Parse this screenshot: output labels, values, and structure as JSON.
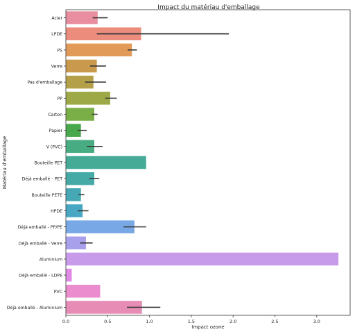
{
  "chart_data": {
    "type": "bar",
    "orientation": "horizontal",
    "title": "Impact du matériau d'emballage",
    "xlabel": "Impact ozone",
    "ylabel": "Matériau d'emballage",
    "xlim": [
      0,
      3.4
    ],
    "xticks": [
      "0.0",
      "0.5",
      "1.0",
      "1.5",
      "2.0",
      "2.5",
      "3.0"
    ],
    "grid": false,
    "categories": [
      "Acier",
      "LPDE",
      "PS",
      "Verre",
      "Pas d'emballage",
      "PP",
      "Carton",
      "Papier",
      "V (PVC)",
      "Bouteille PET",
      "Déjà emballé - PET",
      "Bouteille PETE",
      "HPDE",
      "Déjà emballé - PP/PE",
      "Déjà emballé - Verre",
      "Aluminium",
      "Déjà emballé - LDPE",
      "PVC",
      "Déjà emballé - Aluminium"
    ],
    "values": [
      0.38,
      0.9,
      0.79,
      0.37,
      0.33,
      0.53,
      0.34,
      0.18,
      0.34,
      0.96,
      0.34,
      0.18,
      0.2,
      0.82,
      0.24,
      3.26,
      0.07,
      0.41,
      0.91
    ],
    "error_low": [
      0.32,
      0.37,
      0.74,
      0.29,
      0.23,
      0.47,
      0.31,
      0.14,
      0.25,
      null,
      0.28,
      0.15,
      0.14,
      0.69,
      0.17,
      null,
      null,
      null,
      0.73
    ],
    "error_high": [
      0.5,
      1.95,
      0.85,
      0.48,
      0.48,
      0.61,
      0.38,
      0.25,
      0.44,
      null,
      0.4,
      0.22,
      0.27,
      0.96,
      0.32,
      null,
      null,
      null,
      1.13
    ],
    "colors": [
      "#e88ea0",
      "#eb8c7c",
      "#e29a59",
      "#c99a4e",
      "#b5a04a",
      "#9da946",
      "#7aae47",
      "#4aa84c",
      "#48ac82",
      "#45ab97",
      "#45aaa6",
      "#45a8b4",
      "#48a7c2",
      "#78a8e5",
      "#a8a0ea",
      "#c89aea",
      "#e08ae6",
      "#ea8ccd",
      "#e78cb5"
    ]
  }
}
